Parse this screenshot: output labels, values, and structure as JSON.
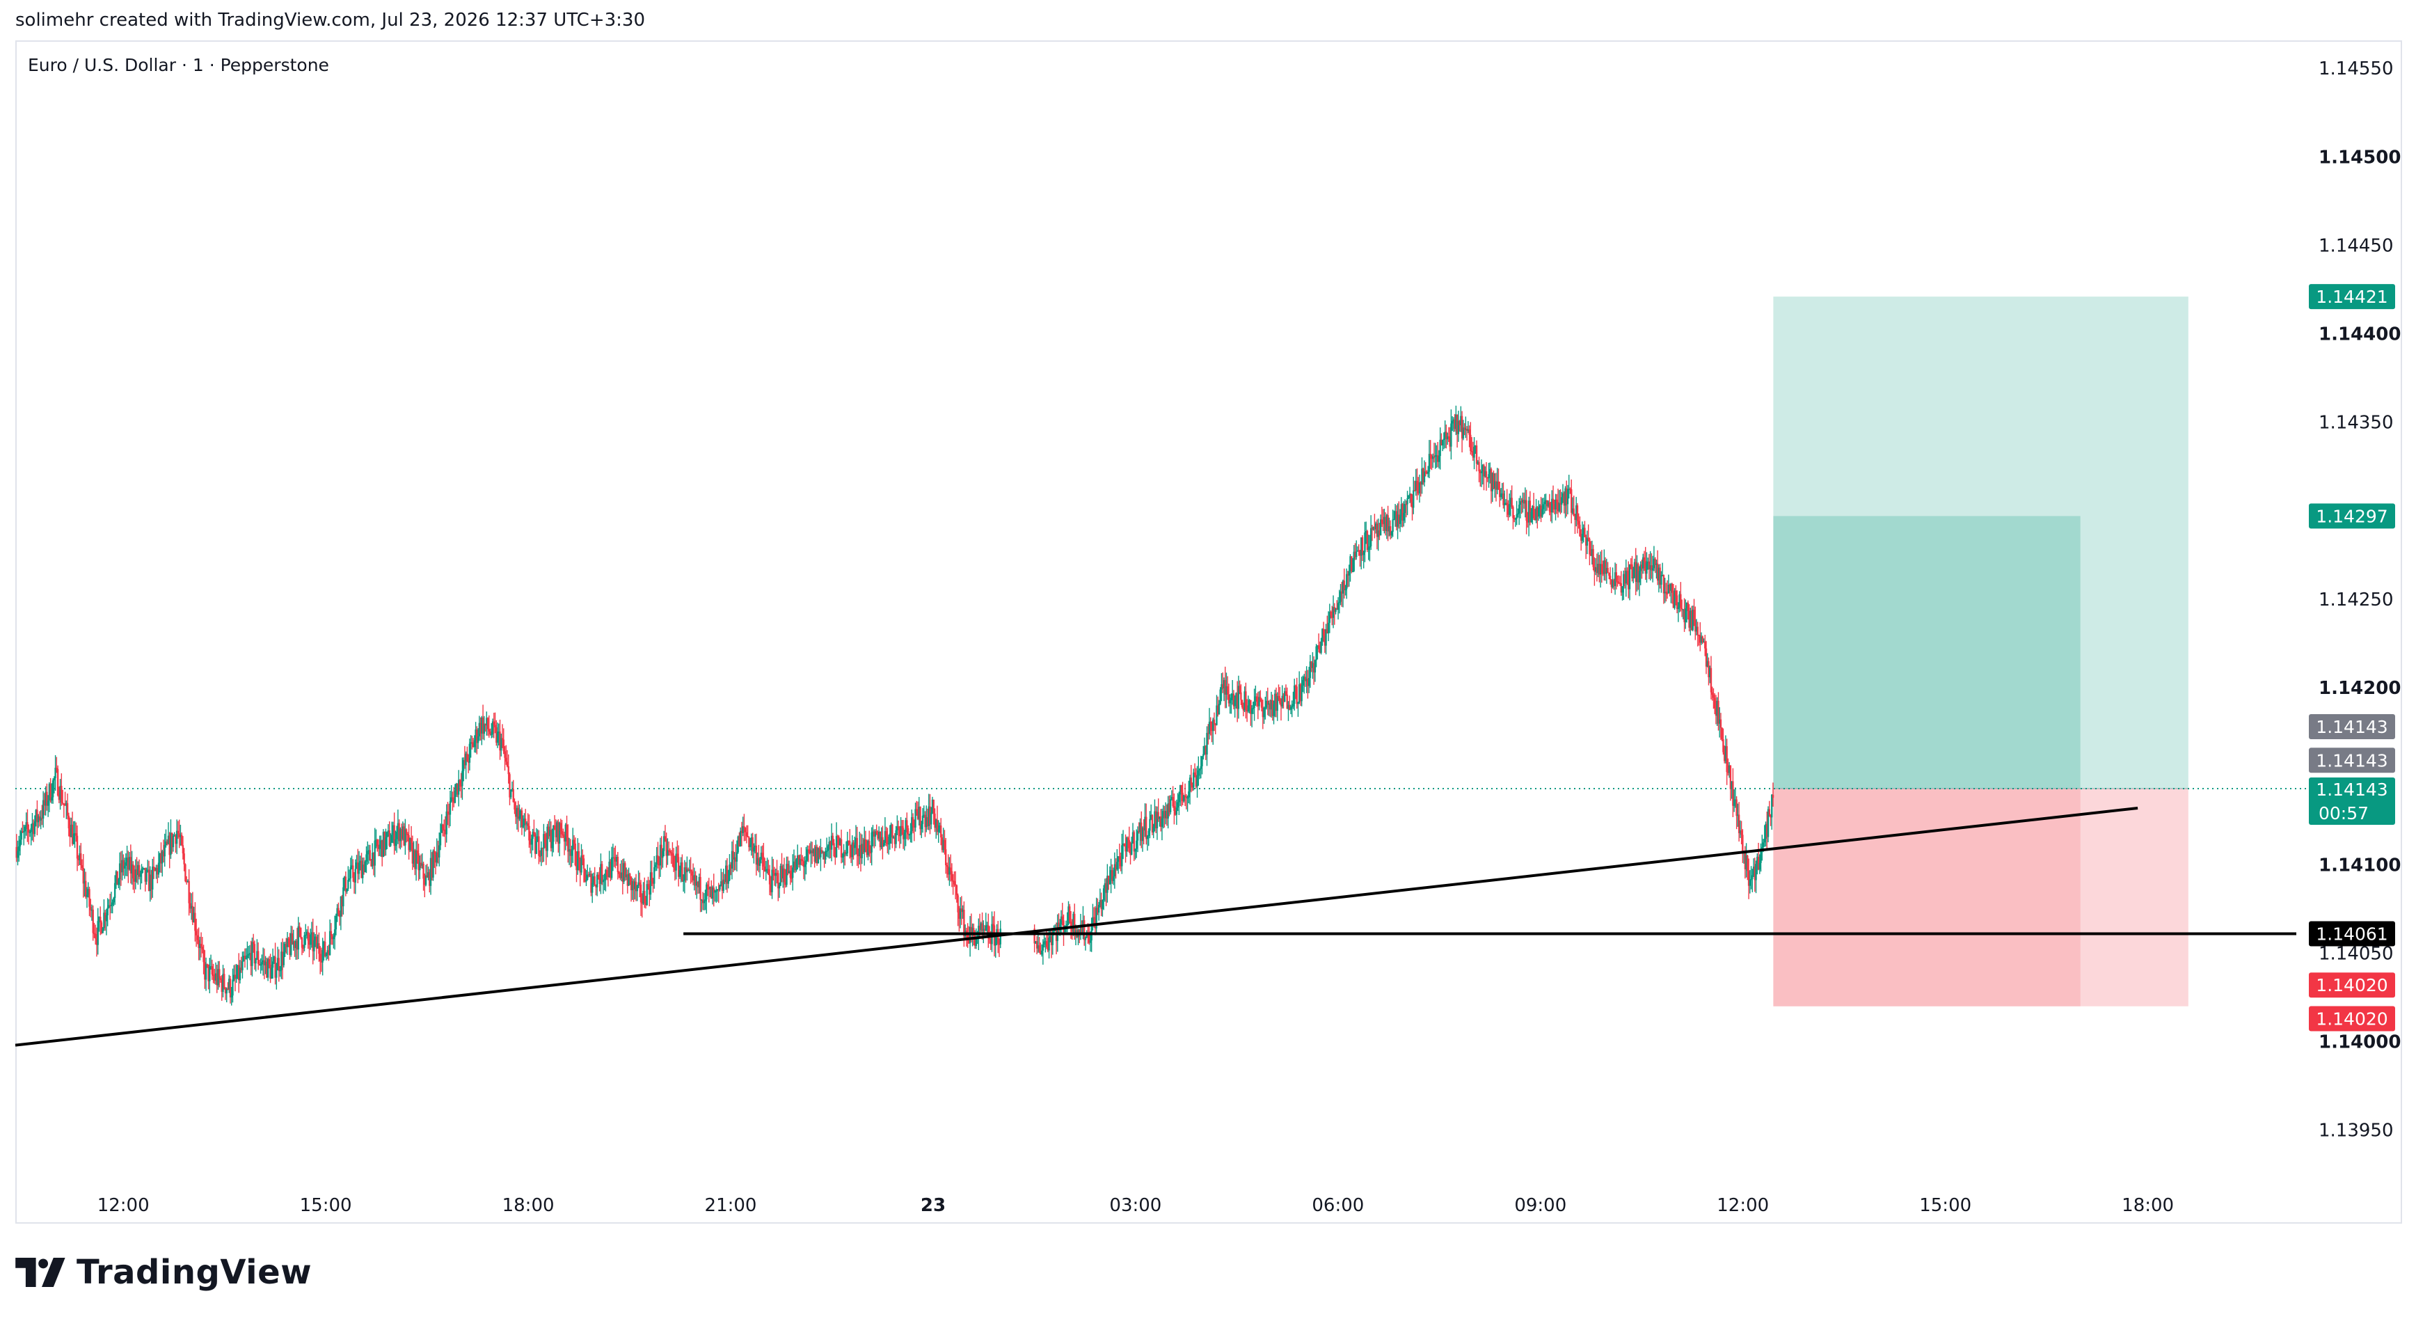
{
  "header": {
    "created_by": "solimehr created with TradingView.com, Jul 23, 2026 12:37 UTC+3:30"
  },
  "brand": {
    "name": "TradingView"
  },
  "chart_data": {
    "type": "candlestick",
    "title": "Euro / U.S. Dollar · 1 · Pepperstone",
    "ylim": [
      1.1392,
      1.14565
    ],
    "y_ticks": [
      "1.14550",
      "1.14500",
      "1.14450",
      "1.14400",
      "1.14350",
      "1.14250",
      "1.14200",
      "1.14100",
      "1.14050",
      "1.14000",
      "1.13950"
    ],
    "y_tick_values": [
      1.1455,
      1.145,
      1.1445,
      1.144,
      1.1435,
      1.1425,
      1.142,
      1.141,
      1.1405,
      1.14,
      1.1395
    ],
    "x_ticks": [
      "12:00",
      "15:00",
      "18:00",
      "21:00",
      "23",
      "03:00",
      "06:00",
      "09:00",
      "12:00",
      "15:00",
      "18:00"
    ],
    "x_tick_hours": [
      12,
      15,
      18,
      21,
      24,
      27,
      30,
      33,
      36,
      39,
      42
    ],
    "x_range_hours": [
      10.4,
      44.2
    ],
    "price_path": {
      "hours": [
        10.4,
        10.8,
        11.0,
        11.3,
        11.6,
        12.0,
        12.4,
        12.8,
        13.2,
        13.6,
        13.9,
        14.2,
        14.6,
        15.0,
        15.3,
        15.8,
        16.1,
        16.5,
        16.9,
        17.3,
        17.6,
        17.8,
        18.1,
        18.5,
        18.9,
        19.3,
        19.7,
        20.0,
        20.4,
        20.8,
        21.2,
        21.6,
        22.0,
        22.5,
        23.0,
        23.5,
        24.0,
        24.5,
        25.0,
        25.5,
        26.0,
        26.3,
        26.7,
        27.1,
        27.5,
        27.9,
        28.3,
        28.7,
        29.1,
        29.5,
        29.9,
        30.3,
        30.7,
        31.0,
        31.4,
        31.8,
        32.2,
        32.6,
        33.0,
        33.4,
        33.8,
        34.2,
        34.6,
        35.0,
        35.4,
        35.7,
        35.9,
        36.1,
        36.3,
        36.45
      ],
      "prices": [
        1.1411,
        1.1413,
        1.1415,
        1.1411,
        1.1406,
        1.141,
        1.1409,
        1.1412,
        1.1404,
        1.1403,
        1.1405,
        1.1404,
        1.1406,
        1.1405,
        1.1409,
        1.1411,
        1.1412,
        1.1409,
        1.1414,
        1.1418,
        1.1417,
        1.1413,
        1.1411,
        1.1412,
        1.1409,
        1.141,
        1.1408,
        1.1411,
        1.1409,
        1.1408,
        1.1412,
        1.1409,
        1.141,
        1.1411,
        1.1411,
        1.1412,
        1.1413,
        1.1406,
        1.1406,
        1.1405,
        1.1407,
        1.1406,
        1.141,
        1.1412,
        1.1413,
        1.1415,
        1.142,
        1.1419,
        1.1419,
        1.142,
        1.1424,
        1.1428,
        1.1429,
        1.143,
        1.1433,
        1.1435,
        1.1432,
        1.143,
        1.143,
        1.1431,
        1.1427,
        1.1426,
        1.1427,
        1.1425,
        1.1423,
        1.1417,
        1.1413,
        1.1409,
        1.1411,
        1.1414
      ]
    },
    "current_price": {
      "value": "1.14143",
      "countdown": "00:57",
      "color": "#089981"
    },
    "trade_tool": {
      "entry": 1.14143,
      "target": 1.14421,
      "target2": 1.14297,
      "stop": 1.1402,
      "start_hour": 36.45,
      "end_hour": 42.6,
      "end_hour_inner": 41.0,
      "profit_color": "#089981",
      "loss_color": "#f23645"
    },
    "price_labels": [
      {
        "value": "1.14421",
        "price": 1.14421,
        "bg": "#089981",
        "fg": "#ffffff"
      },
      {
        "value": "1.14297",
        "price": 1.14297,
        "bg": "#089981",
        "fg": "#ffffff"
      },
      {
        "value": "1.14143",
        "price": 1.14178,
        "bg": "#787b86",
        "fg": "#ffffff"
      },
      {
        "value": "1.14143",
        "price": 1.14159,
        "bg": "#787b86",
        "fg": "#ffffff"
      },
      {
        "value": "1.14061",
        "price": 1.14061,
        "bg": "#000000",
        "fg": "#ffffff"
      },
      {
        "value": "1.14020",
        "price": 1.14032,
        "bg": "#f23645",
        "fg": "#ffffff"
      },
      {
        "value": "1.14020",
        "price": 1.14013,
        "bg": "#f23645",
        "fg": "#ffffff"
      }
    ],
    "lines": [
      {
        "name": "support-trendline",
        "from": [
          10.4,
          1.13998
        ],
        "to": [
          41.85,
          1.14132
        ]
      },
      {
        "name": "horizontal-level",
        "from": [
          20.3,
          1.14061
        ],
        "to": [
          44.2,
          1.14061
        ]
      }
    ]
  }
}
